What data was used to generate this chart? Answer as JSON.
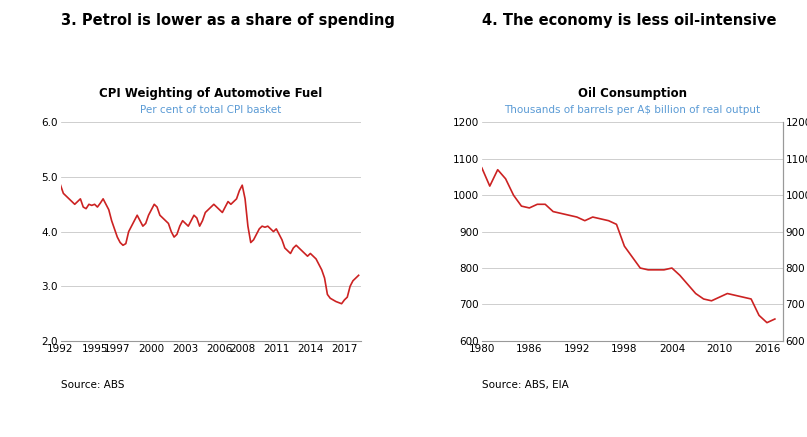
{
  "chart1": {
    "panel_title": "3. Petrol is lower as a share of spending",
    "title": "CPI Weighting of Automotive Fuel",
    "subtitle": "Per cent of total CPI basket",
    "source": "Source: ABS",
    "ylim": [
      2.0,
      6.0
    ],
    "yticks": [
      2.0,
      3.0,
      4.0,
      5.0,
      6.0
    ],
    "xticks": [
      1992,
      1995,
      1997,
      2000,
      2003,
      2006,
      2008,
      2011,
      2014,
      2017
    ],
    "xlim": [
      1992,
      2018.5
    ],
    "line_color": "#cc2222",
    "x": [
      1992.0,
      1992.25,
      1992.5,
      1992.75,
      1993.0,
      1993.25,
      1993.5,
      1993.75,
      1994.0,
      1994.25,
      1994.5,
      1994.75,
      1995.0,
      1995.25,
      1995.5,
      1995.75,
      1996.0,
      1996.25,
      1996.5,
      1996.75,
      1997.0,
      1997.25,
      1997.5,
      1997.75,
      1998.0,
      1998.25,
      1998.5,
      1998.75,
      1999.0,
      1999.25,
      1999.5,
      1999.75,
      2000.0,
      2000.25,
      2000.5,
      2000.75,
      2001.0,
      2001.25,
      2001.5,
      2001.75,
      2002.0,
      2002.25,
      2002.5,
      2002.75,
      2003.0,
      2003.25,
      2003.5,
      2003.75,
      2004.0,
      2004.25,
      2004.5,
      2004.75,
      2005.0,
      2005.25,
      2005.5,
      2005.75,
      2006.0,
      2006.25,
      2006.5,
      2006.75,
      2007.0,
      2007.25,
      2007.5,
      2007.75,
      2008.0,
      2008.25,
      2008.5,
      2008.75,
      2009.0,
      2009.25,
      2009.5,
      2009.75,
      2010.0,
      2010.25,
      2010.5,
      2010.75,
      2011.0,
      2011.25,
      2011.5,
      2011.75,
      2012.0,
      2012.25,
      2012.5,
      2012.75,
      2013.0,
      2013.25,
      2013.5,
      2013.75,
      2014.0,
      2014.25,
      2014.5,
      2014.75,
      2015.0,
      2015.25,
      2015.5,
      2015.75,
      2016.0,
      2016.25,
      2016.5,
      2016.75,
      2017.0,
      2017.25,
      2017.5,
      2017.75,
      2018.0,
      2018.25
    ],
    "y": [
      4.85,
      4.7,
      4.65,
      4.6,
      4.55,
      4.5,
      4.55,
      4.6,
      4.45,
      4.42,
      4.5,
      4.48,
      4.5,
      4.45,
      4.52,
      4.6,
      4.5,
      4.4,
      4.2,
      4.05,
      3.9,
      3.8,
      3.75,
      3.78,
      4.0,
      4.1,
      4.2,
      4.3,
      4.2,
      4.1,
      4.15,
      4.3,
      4.4,
      4.5,
      4.45,
      4.3,
      4.25,
      4.2,
      4.15,
      4.0,
      3.9,
      3.95,
      4.1,
      4.2,
      4.15,
      4.1,
      4.2,
      4.3,
      4.25,
      4.1,
      4.2,
      4.35,
      4.4,
      4.45,
      4.5,
      4.45,
      4.4,
      4.35,
      4.45,
      4.55,
      4.5,
      4.55,
      4.6,
      4.75,
      4.85,
      4.6,
      4.1,
      3.8,
      3.85,
      3.95,
      4.05,
      4.1,
      4.08,
      4.1,
      4.05,
      4.0,
      4.05,
      3.95,
      3.85,
      3.7,
      3.65,
      3.6,
      3.7,
      3.75,
      3.7,
      3.65,
      3.6,
      3.55,
      3.6,
      3.55,
      3.5,
      3.4,
      3.3,
      3.15,
      2.85,
      2.78,
      2.75,
      2.72,
      2.7,
      2.68,
      2.75,
      2.8,
      3.0,
      3.1,
      3.15,
      3.2
    ]
  },
  "chart2": {
    "panel_title": "4. The economy is less oil-intensive",
    "title": "Oil Consumption",
    "subtitle": "Thousands of barrels per A$ billion of real output",
    "source": "Source: ABS, EIA",
    "ylim": [
      600,
      1200
    ],
    "yticks": [
      600,
      700,
      800,
      900,
      1000,
      1100,
      1200
    ],
    "xticks": [
      1980,
      1986,
      1992,
      1998,
      2004,
      2010,
      2016
    ],
    "xlim": [
      1980,
      2018
    ],
    "line_color": "#cc2222",
    "x": [
      1980,
      1981,
      1982,
      1983,
      1984,
      1985,
      1986,
      1987,
      1988,
      1989,
      1990,
      1991,
      1992,
      1993,
      1994,
      1995,
      1996,
      1997,
      1998,
      1999,
      2000,
      2001,
      2002,
      2003,
      2004,
      2005,
      2006,
      2007,
      2008,
      2009,
      2010,
      2011,
      2012,
      2013,
      2014,
      2015,
      2016,
      2017
    ],
    "y": [
      1075,
      1025,
      1070,
      1045,
      1000,
      970,
      965,
      975,
      975,
      955,
      950,
      945,
      940,
      930,
      940,
      935,
      930,
      920,
      860,
      830,
      800,
      795,
      795,
      795,
      800,
      780,
      755,
      730,
      715,
      710,
      720,
      730,
      725,
      720,
      715,
      670,
      650,
      660
    ]
  },
  "line_width": 1.2,
  "panel_title_fontsize": 10.5,
  "title_fontsize": 8.5,
  "subtitle_fontsize": 7.5,
  "tick_fontsize": 7.5,
  "source_fontsize": 7.5,
  "panel_title_color": "#000000",
  "subtitle_color": "#5b9bd5",
  "grid_color": "#bbbbbb",
  "background_color": "#ffffff"
}
